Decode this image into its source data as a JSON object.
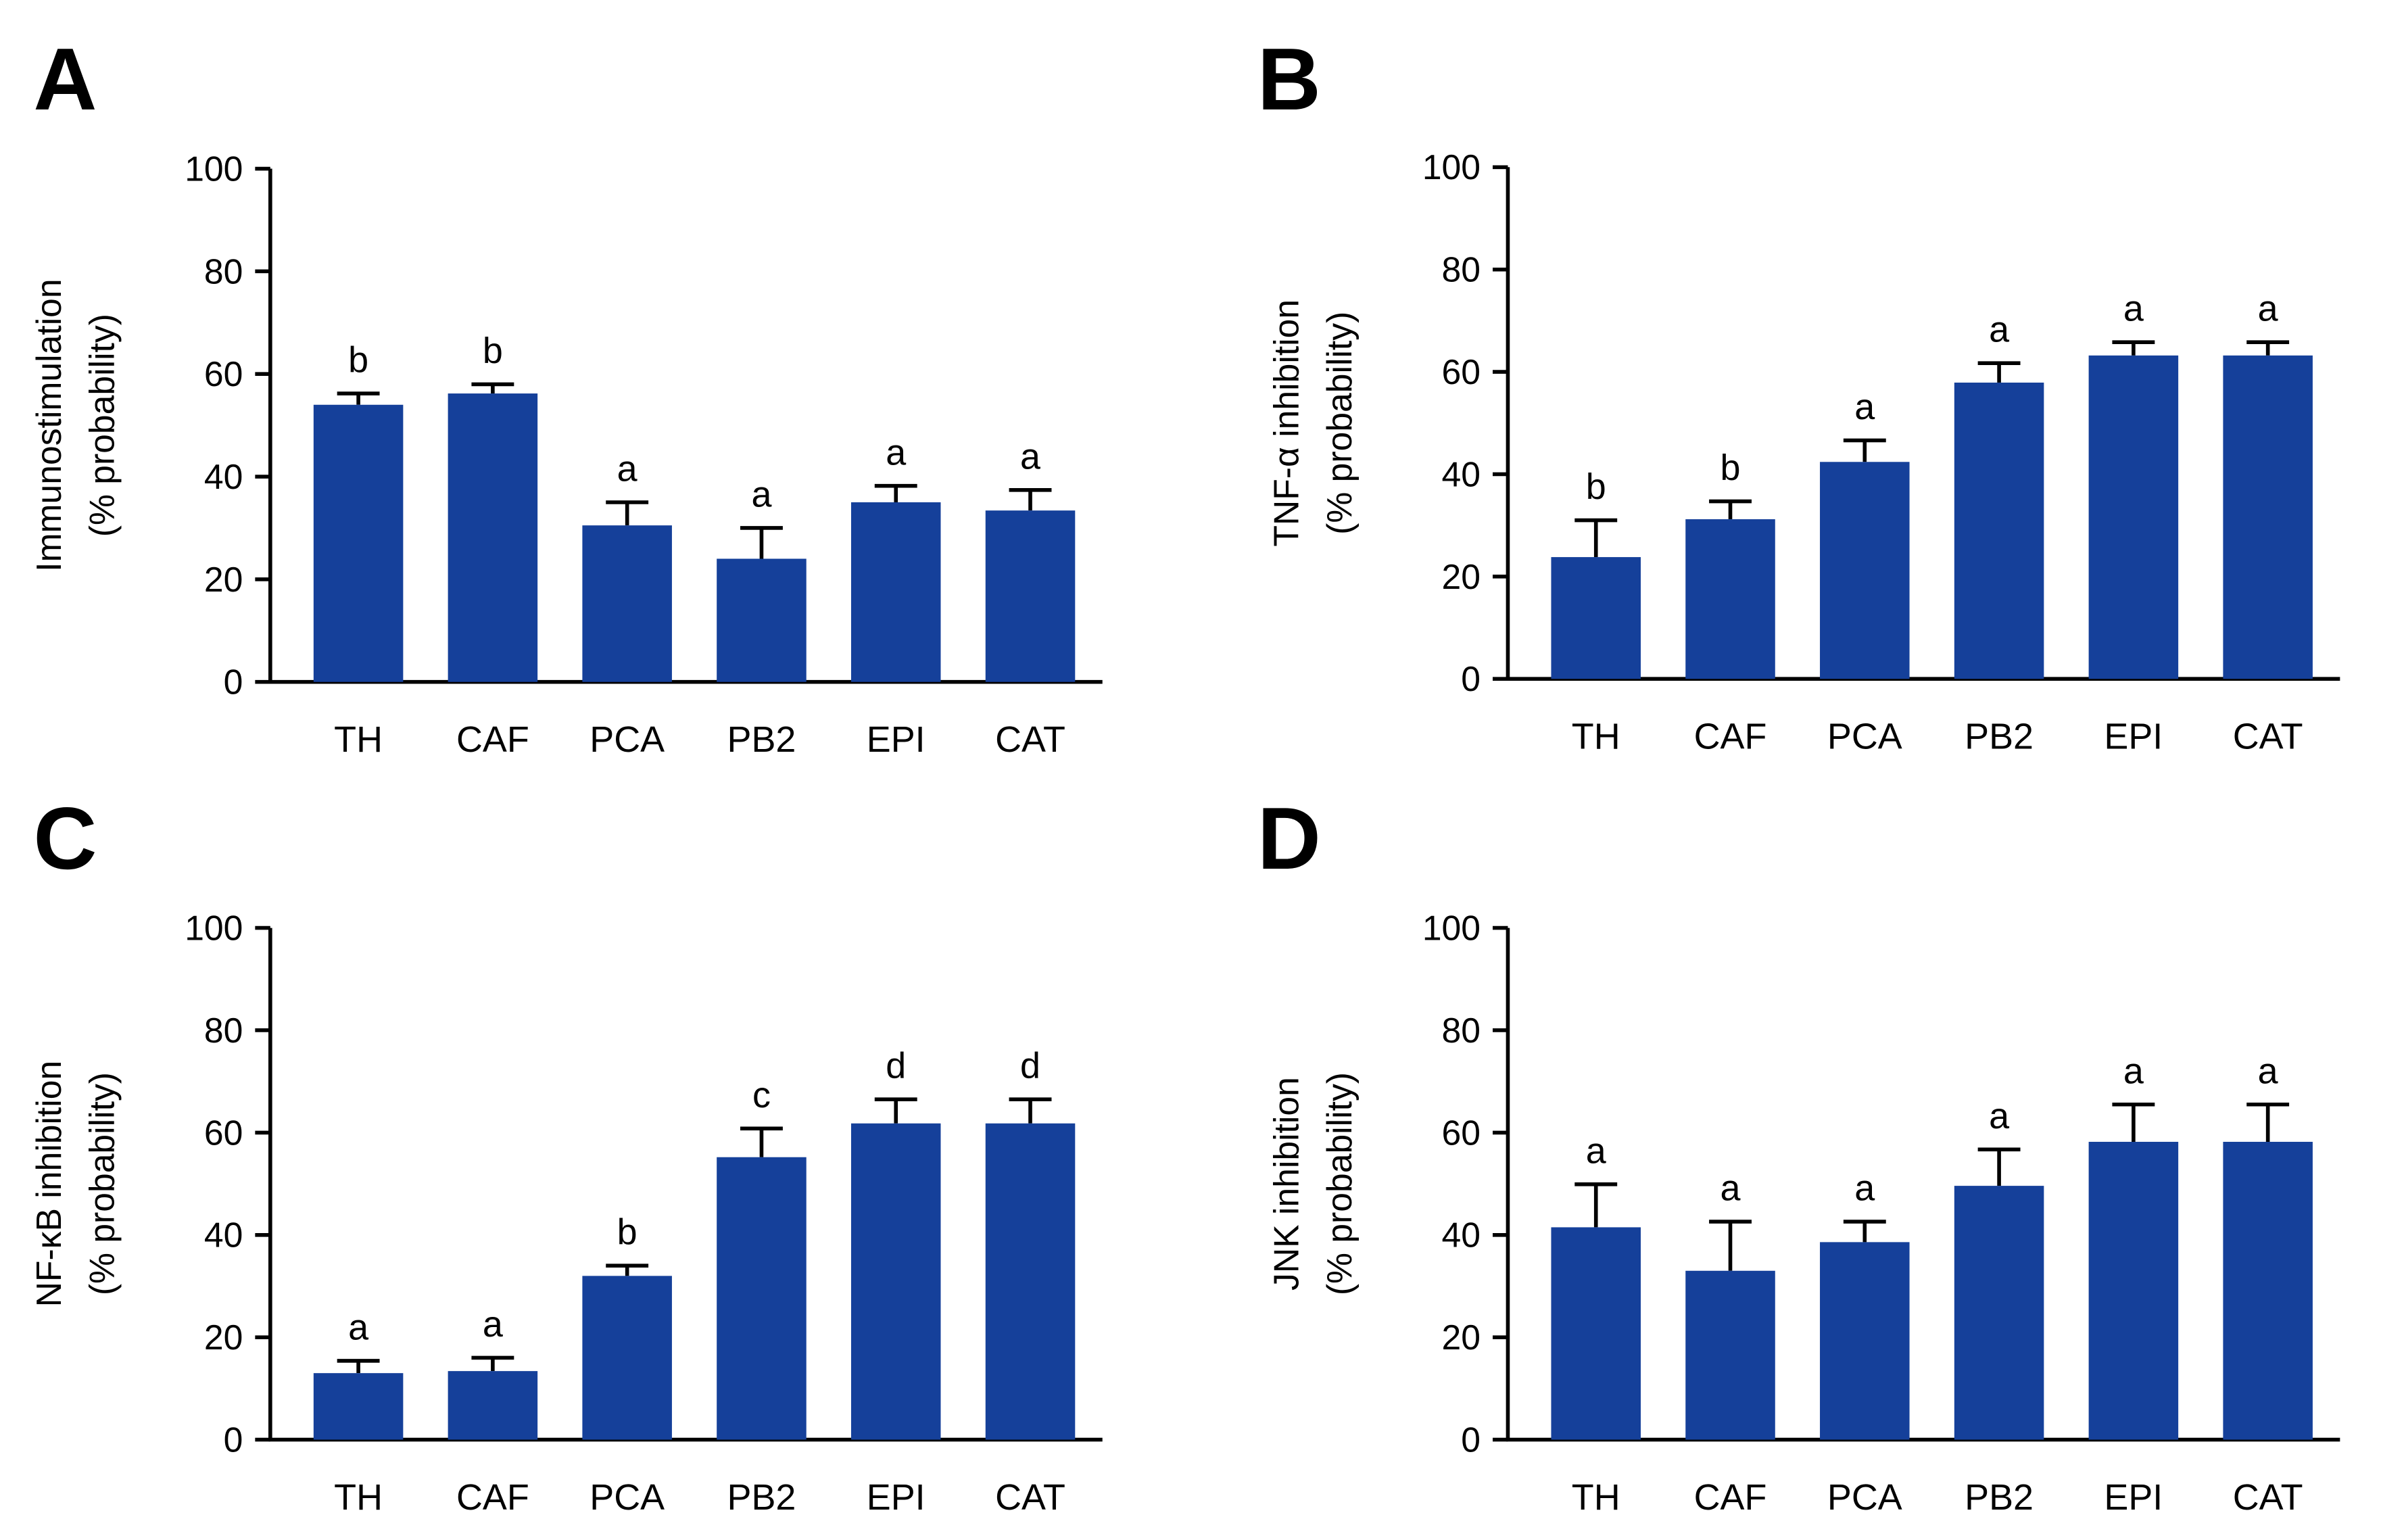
{
  "colors": {
    "bar": "#15409a",
    "axis": "#000000"
  },
  "chart_data": [
    {
      "type": "bar",
      "panel": "A",
      "ylabel": [
        "Immunostimulation",
        "(% probability)"
      ],
      "ylim": [
        0,
        100
      ],
      "yticks": [
        0,
        20,
        40,
        60,
        80,
        100
      ],
      "categories": [
        "TH",
        "CAF",
        "PCA",
        "PB2",
        "EPI",
        "CAT"
      ],
      "values": [
        54,
        56.2,
        30.5,
        24,
        35,
        33.4
      ],
      "errors": [
        2.2,
        1.8,
        4.5,
        6,
        3.2,
        4
      ],
      "letters": [
        "b",
        "b",
        "a",
        "a",
        "a",
        "a"
      ]
    },
    {
      "type": "bar",
      "panel": "B",
      "ylabel": [
        "TNF-α inhibition",
        "(% probability)"
      ],
      "ylim": [
        0,
        100
      ],
      "yticks": [
        0,
        20,
        40,
        60,
        80,
        100
      ],
      "categories": [
        "TH",
        "CAF",
        "PCA",
        "PB2",
        "EPI",
        "CAT"
      ],
      "values": [
        23.8,
        31.2,
        42.4,
        57.9,
        63.2,
        63.2
      ],
      "errors": [
        7.2,
        3.5,
        4.2,
        3.8,
        2.6,
        2.6
      ],
      "letters": [
        "b",
        "b",
        "a",
        "a",
        "a",
        "a"
      ]
    },
    {
      "type": "bar",
      "panel": "C",
      "ylabel": [
        "NF-κB inhibition",
        "(% probability)"
      ],
      "ylim": [
        0,
        100
      ],
      "yticks": [
        0,
        20,
        40,
        60,
        80,
        100
      ],
      "categories": [
        "TH",
        "CAF",
        "PCA",
        "PB2",
        "EPI",
        "CAT"
      ],
      "values": [
        13,
        13.4,
        32,
        55.2,
        61.8,
        61.8
      ],
      "errors": [
        2.4,
        2.6,
        2,
        5.6,
        4.7,
        4.7
      ],
      "letters": [
        "a",
        "a",
        "b",
        "c",
        "d",
        "d"
      ]
    },
    {
      "type": "bar",
      "panel": "D",
      "ylabel": [
        "JNK inhibition",
        "(% probability)"
      ],
      "ylim": [
        0,
        100
      ],
      "yticks": [
        0,
        20,
        40,
        60,
        80,
        100
      ],
      "categories": [
        "TH",
        "CAF",
        "PCA",
        "PB2",
        "EPI",
        "CAT"
      ],
      "values": [
        41.5,
        33,
        38.6,
        49.6,
        58.2,
        58.2
      ],
      "errors": [
        8.4,
        9.6,
        4,
        7.1,
        7.3,
        7.3
      ],
      "letters": [
        "a",
        "a",
        "a",
        "a",
        "a",
        "a"
      ]
    }
  ]
}
